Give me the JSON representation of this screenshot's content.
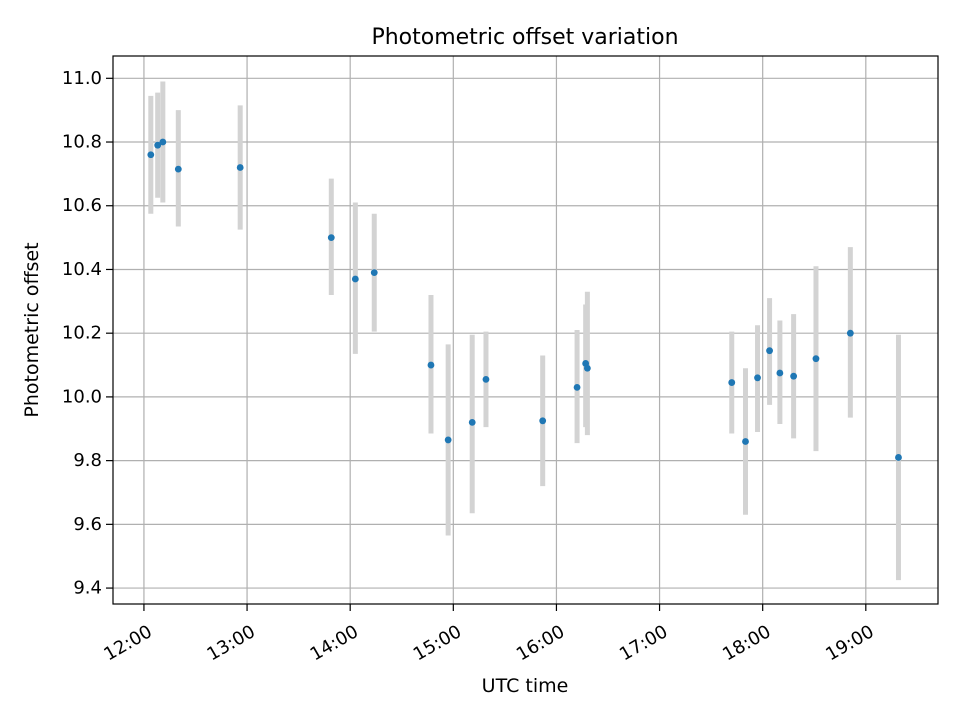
{
  "chart_data": {
    "type": "scatter",
    "title": "Photometric offset variation",
    "xlabel": "UTC time",
    "ylabel": "Photometric offset",
    "x_unit": "hours (UTC)",
    "xlim": [
      11.7,
      19.7
    ],
    "ylim": [
      9.35,
      11.07
    ],
    "x_ticks": [
      12,
      13,
      14,
      15,
      16,
      17,
      18,
      19
    ],
    "x_tick_labels": [
      "12:00",
      "13:00",
      "14:00",
      "15:00",
      "16:00",
      "17:00",
      "18:00",
      "19:00"
    ],
    "y_ticks": [
      9.4,
      9.6,
      9.8,
      10.0,
      10.2,
      10.4,
      10.6,
      10.8,
      11.0
    ],
    "y_tick_labels": [
      "9.4",
      "9.6",
      "9.8",
      "10.0",
      "10.2",
      "10.4",
      "10.6",
      "10.8",
      "11.0"
    ],
    "grid": true,
    "marker_color": "#1f77b4",
    "errorbar_color": "#d3d3d3",
    "points": [
      {
        "x": "12:04",
        "y": 10.76,
        "yerr": [
          10.575,
          10.945
        ]
      },
      {
        "x": "12:08",
        "y": 10.79,
        "yerr": [
          10.625,
          10.955
        ]
      },
      {
        "x": "12:11",
        "y": 10.8,
        "yerr": [
          10.61,
          10.99
        ]
      },
      {
        "x": "12:20",
        "y": 10.715,
        "yerr": [
          10.535,
          10.9
        ]
      },
      {
        "x": "12:56",
        "y": 10.72,
        "yerr": [
          10.525,
          10.915
        ]
      },
      {
        "x": "13:49",
        "y": 10.5,
        "yerr": [
          10.32,
          10.685
        ]
      },
      {
        "x": "14:03",
        "y": 10.37,
        "yerr": [
          10.135,
          10.61
        ]
      },
      {
        "x": "14:14",
        "y": 10.39,
        "yerr": [
          10.205,
          10.575
        ]
      },
      {
        "x": "14:47",
        "y": 10.1,
        "yerr": [
          9.885,
          10.32
        ]
      },
      {
        "x": "14:57",
        "y": 9.865,
        "yerr": [
          9.565,
          10.165
        ]
      },
      {
        "x": "15:11",
        "y": 9.92,
        "yerr": [
          9.635,
          10.195
        ]
      },
      {
        "x": "15:19",
        "y": 10.055,
        "yerr": [
          9.905,
          10.205
        ]
      },
      {
        "x": "15:52",
        "y": 9.925,
        "yerr": [
          9.72,
          10.13
        ]
      },
      {
        "x": "16:12",
        "y": 10.03,
        "yerr": [
          9.855,
          10.21
        ]
      },
      {
        "x": "16:17",
        "y": 10.105,
        "yerr": [
          9.905,
          10.29
        ]
      },
      {
        "x": "16:18",
        "y": 10.09,
        "yerr": [
          9.88,
          10.33
        ]
      },
      {
        "x": "17:42",
        "y": 10.045,
        "yerr": [
          9.885,
          10.205
        ]
      },
      {
        "x": "17:50",
        "y": 9.86,
        "yerr": [
          9.63,
          10.09
        ]
      },
      {
        "x": "17:57",
        "y": 10.06,
        "yerr": [
          9.89,
          10.225
        ]
      },
      {
        "x": "18:04",
        "y": 10.145,
        "yerr": [
          9.975,
          10.31
        ]
      },
      {
        "x": "18:10",
        "y": 10.075,
        "yerr": [
          9.915,
          10.24
        ]
      },
      {
        "x": "18:18",
        "y": 10.065,
        "yerr": [
          9.87,
          10.26
        ]
      },
      {
        "x": "18:31",
        "y": 10.12,
        "yerr": [
          9.83,
          10.41
        ]
      },
      {
        "x": "18:51",
        "y": 10.2,
        "yerr": [
          9.935,
          10.47
        ]
      },
      {
        "x": "19:19",
        "y": 9.81,
        "yerr": [
          9.425,
          10.195
        ]
      }
    ]
  }
}
